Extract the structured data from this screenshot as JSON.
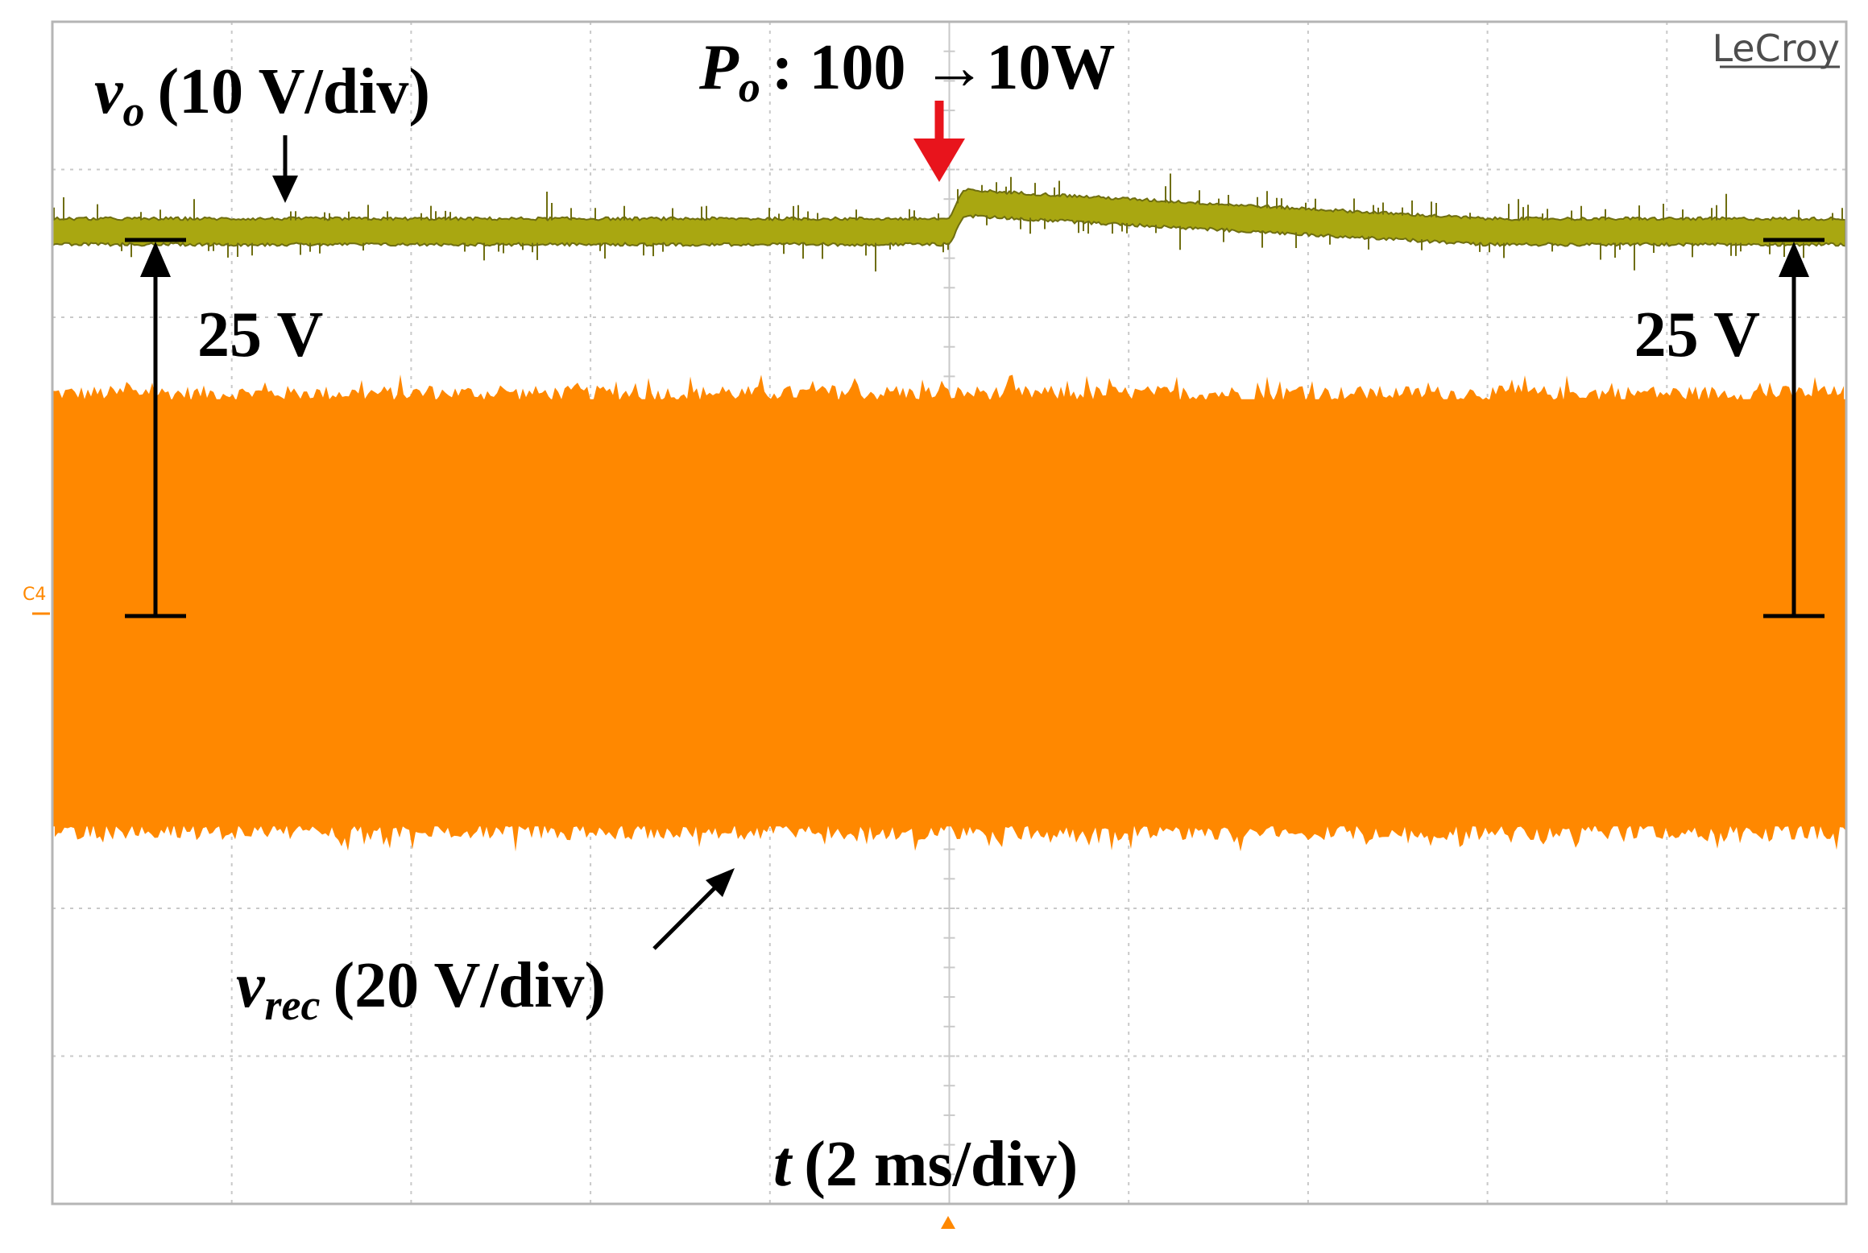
{
  "chart_data": {
    "type": "line",
    "brand": "LeCroy",
    "channel_marker": "C4",
    "time_axis": {
      "label_var": "t",
      "label_scale": "(2 ms/div)",
      "divisions": 10,
      "range_ms": [
        0,
        20
      ]
    },
    "vertical_divisions": 8,
    "event": {
      "label_var": "P",
      "label_sub": "o",
      "label_text": ": 100 →10W",
      "time_ms": 10
    },
    "series": [
      {
        "name_var": "v",
        "name_sub": "o",
        "scale": "(10 V/div)",
        "color": "#a9a711",
        "edge_color": "#6f6e10",
        "level_div_from_top": 1.42,
        "overshoot_div": 0.2,
        "settle_ms": 6
      },
      {
        "name_var": "v",
        "name_sub": "rec",
        "scale": "(20 V/div)",
        "color": "#ff8800",
        "top_div_from_top": 2.5,
        "bottom_div_from_top": 5.5
      }
    ],
    "annotations": [
      {
        "text": "25 V",
        "side": "left"
      },
      {
        "text": "25 V",
        "side": "right"
      }
    ],
    "colors": {
      "grid": "#c9c9c9",
      "border": "#b5b5b5",
      "event_arrow": "#e8141c",
      "annotation": "#000000"
    }
  }
}
